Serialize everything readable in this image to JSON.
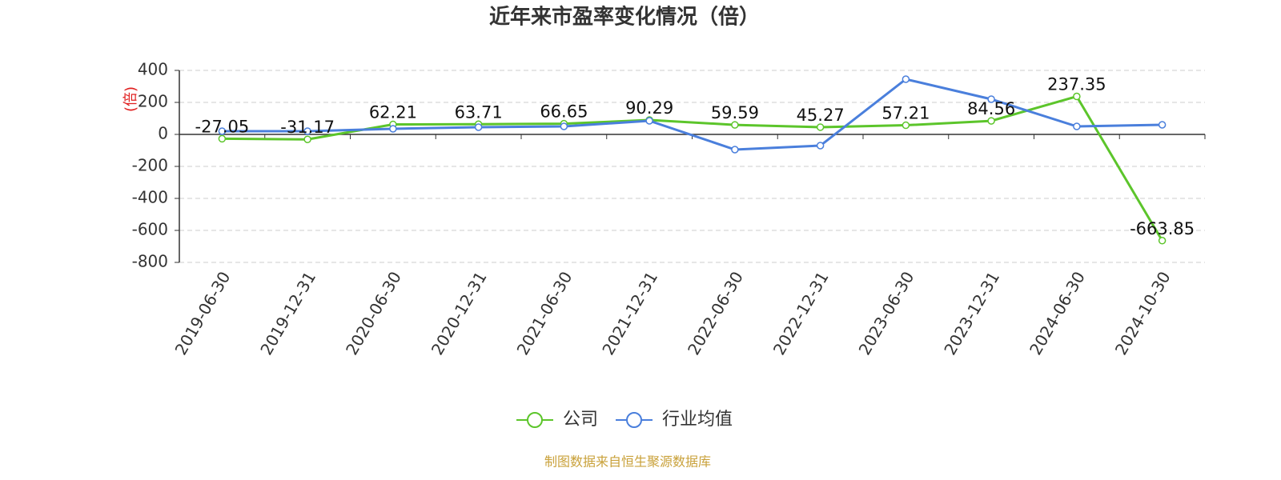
{
  "chart_data": {
    "type": "line",
    "title": "近年来市盈率变化情况（倍）",
    "y_label": "(倍)",
    "source": "制图数据来自恒生聚源数据库",
    "categories": [
      "2019-06-30",
      "2019-12-31",
      "2020-06-30",
      "2020-12-31",
      "2021-06-30",
      "2021-12-31",
      "2022-06-30",
      "2022-12-31",
      "2023-06-30",
      "2023-12-31",
      "2024-06-30",
      "2024-10-30"
    ],
    "series": [
      {
        "name": "公司",
        "color": "#5cc52b",
        "values": [
          -27.05,
          -31.17,
          62.21,
          63.71,
          66.65,
          90.29,
          59.59,
          45.27,
          57.21,
          84.56,
          237.35,
          -663.85
        ]
      },
      {
        "name": "行业均值",
        "color": "#4a7fdc",
        "values": [
          20,
          20,
          35,
          45,
          50,
          85,
          -95,
          -70,
          345,
          220,
          50,
          60
        ]
      }
    ],
    "ylim": [
      -800,
      400
    ],
    "yticks": [
      -800,
      -600,
      -400,
      -200,
      0,
      200,
      400
    ],
    "grid": true
  }
}
